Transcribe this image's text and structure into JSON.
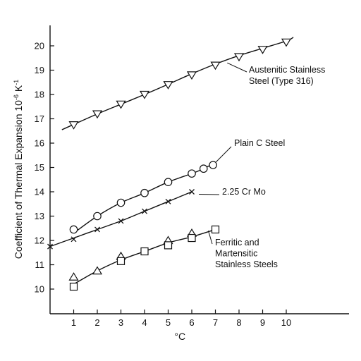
{
  "chart_data": {
    "type": "line",
    "xlabel": "°C",
    "ylabel": "Coefficient of Thermal Expansion 10",
    "ylabel_exp": "-6",
    "ylabel_unit": " K",
    "ylabel_unit_exp": "-1",
    "xlim": [
      0,
      13
    ],
    "ylim": [
      9,
      21
    ],
    "x_ticks": [
      "1",
      "2",
      "3",
      "4",
      "5",
      "6",
      "7",
      "8",
      "9",
      "10"
    ],
    "y_ticks": [
      "10",
      "11",
      "12",
      "13",
      "14",
      "15",
      "16",
      "17",
      "18",
      "19",
      "20"
    ],
    "grid": false,
    "series": [
      {
        "id": "austenitic",
        "marker": "triangle-down",
        "label_lines": [
          "Austenitic Stainless",
          "Steel (Type 316)"
        ],
        "curve": [
          [
            0.5,
            16.55
          ],
          [
            2,
            17.2
          ],
          [
            3,
            17.6
          ],
          [
            4,
            18.0
          ],
          [
            5,
            18.42
          ],
          [
            6,
            18.85
          ],
          [
            7,
            19.25
          ],
          [
            8,
            19.6
          ],
          [
            9,
            19.9
          ],
          [
            10,
            20.2
          ],
          [
            10.3,
            20.35
          ]
        ],
        "points": [
          [
            1,
            16.75
          ],
          [
            2,
            17.2
          ],
          [
            3,
            17.6
          ],
          [
            4,
            18.0
          ],
          [
            5,
            18.4
          ],
          [
            6,
            18.8
          ],
          [
            7,
            19.2
          ],
          [
            8,
            19.55
          ],
          [
            9,
            19.85
          ],
          [
            10,
            20.15
          ]
        ]
      },
      {
        "id": "plain-c",
        "marker": "circle",
        "label_lines": [
          "Plain C Steel"
        ],
        "curve": [
          [
            1,
            12.3
          ],
          [
            2,
            13.0
          ],
          [
            3,
            13.55
          ],
          [
            4,
            13.95
          ],
          [
            5,
            14.4
          ],
          [
            6,
            14.75
          ],
          [
            6.5,
            14.95
          ],
          [
            7,
            15.2
          ]
        ],
        "points": [
          [
            1,
            12.45
          ],
          [
            2,
            13.0
          ],
          [
            3,
            13.55
          ],
          [
            4,
            13.95
          ],
          [
            5,
            14.4
          ],
          [
            6,
            14.75
          ],
          [
            6.5,
            14.95
          ],
          [
            6.9,
            15.1
          ]
        ]
      },
      {
        "id": "cr-mo",
        "marker": "x",
        "label_lines": [
          "2.25 Cr Mo"
        ],
        "curve": [
          [
            0,
            11.75
          ],
          [
            1,
            12.1
          ],
          [
            2,
            12.45
          ],
          [
            3,
            12.8
          ],
          [
            4,
            13.2
          ],
          [
            5,
            13.6
          ],
          [
            6,
            14.0
          ]
        ],
        "points": [
          [
            0,
            11.75
          ],
          [
            1,
            12.05
          ],
          [
            2,
            12.45
          ],
          [
            3,
            12.8
          ],
          [
            4,
            13.2
          ],
          [
            5,
            13.6
          ],
          [
            6,
            14.0
          ]
        ]
      },
      {
        "id": "ferritic-martensitic",
        "markers": [
          "triangle-up",
          "square"
        ],
        "label_lines": [
          "Ferritic and",
          "Martensitic",
          "Stainless Steels"
        ],
        "curve": [
          [
            1,
            10.2
          ],
          [
            2,
            10.75
          ],
          [
            3,
            11.2
          ],
          [
            4,
            11.55
          ],
          [
            5,
            11.9
          ],
          [
            6,
            12.15
          ],
          [
            7,
            12.45
          ]
        ],
        "triangle_points": [
          [
            1,
            10.5
          ],
          [
            2,
            10.75
          ],
          [
            3,
            11.35
          ],
          [
            5,
            12.0
          ],
          [
            6,
            12.3
          ]
        ],
        "square_points": [
          [
            1,
            10.1
          ],
          [
            3,
            11.15
          ],
          [
            4,
            11.55
          ],
          [
            5,
            11.8
          ],
          [
            6,
            12.1
          ],
          [
            7,
            12.45
          ]
        ]
      }
    ]
  }
}
